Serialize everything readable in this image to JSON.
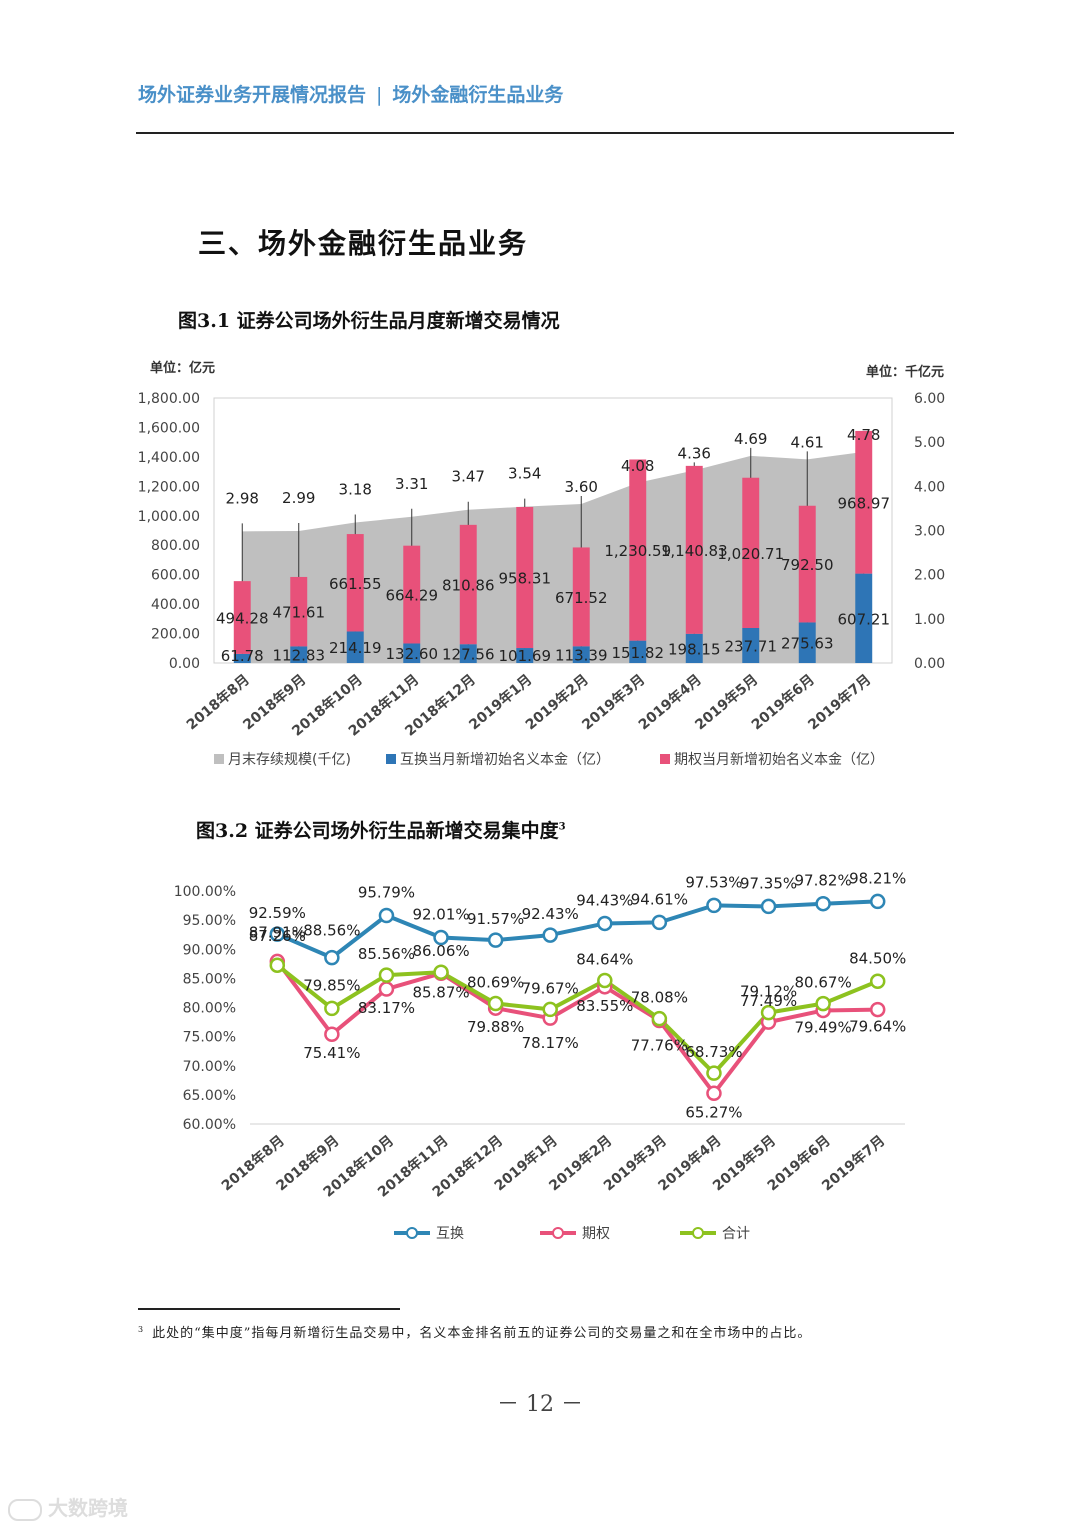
{
  "header": {
    "report_title": "场外证券业务开展情况报告",
    "separator": "|",
    "section_name": "场外金融衍生品业务"
  },
  "section_title": "三、场外金融衍生品业务",
  "figure1": {
    "label": "图3.1 证券公司场外衍生品月度新增交易情况"
  },
  "figure2": {
    "label": "图3.2 证券公司场外衍生品新增交易集中度",
    "footnote_mark": "3"
  },
  "footnote": {
    "mark": "3",
    "text": "此处的“集中度”指每月新增衍生品交易中，名义本金排名前五的证券公司的交易量之和在全市场中的占比。"
  },
  "page_number": "－ 12 －",
  "watermark": "大数跨境",
  "colors": {
    "accent": "#4a90c8",
    "gray": "#bfbfbf",
    "blue": "#2e75b6",
    "pink": "#e8517a",
    "green": "#8dc21f",
    "line_blue": "#2e86b5",
    "line_pink": "#e8517a"
  },
  "chart_data": [
    {
      "type": "bar",
      "title": "图3.1 证券公司场外衍生品月度新增交易情况",
      "left_unit": "单位：亿元",
      "right_unit": "单位：千亿元",
      "categories": [
        "2018年8月",
        "2018年9月",
        "2018年10月",
        "2018年11月",
        "2018年12月",
        "2019年1月",
        "2019年2月",
        "2019年3月",
        "2019年4月",
        "2019年5月",
        "2019年6月",
        "2019年7月"
      ],
      "ylim_left": [
        0,
        1800
      ],
      "yticks_left": [
        "0.00",
        "200.00",
        "400.00",
        "600.00",
        "800.00",
        "1,000.00",
        "1,200.00",
        "1,400.00",
        "1,600.00",
        "1,800.00"
      ],
      "ylim_right": [
        0,
        6
      ],
      "yticks_right": [
        "0.00",
        "1.00",
        "2.00",
        "3.00",
        "4.00",
        "5.00",
        "6.00"
      ],
      "series": [
        {
          "name": "月末存续规模(千亿)",
          "axis": "right",
          "kind": "area",
          "values": [
            2.98,
            2.99,
            3.18,
            3.31,
            3.47,
            3.54,
            3.6,
            4.08,
            4.36,
            4.69,
            4.61,
            4.78
          ],
          "labels": [
            "2.98",
            "2.99",
            "3.18",
            "3.31",
            "3.47",
            "3.54",
            "3.60",
            "4.08",
            "4.36",
            "4.69",
            "4.61",
            "4.78"
          ]
        },
        {
          "name": "互换当月新增初始名义本金（亿）",
          "axis": "left",
          "kind": "stack",
          "values": [
            61.78,
            112.83,
            214.19,
            132.6,
            127.56,
            101.69,
            113.39,
            151.82,
            198.15,
            237.71,
            275.63,
            607.21
          ],
          "labels": [
            "61.78",
            "112.83",
            "214.19",
            "132.60",
            "127.56",
            "101.69",
            "113.39",
            "151.82",
            "198.15",
            "237.71",
            "275.63",
            "607.21"
          ]
        },
        {
          "name": "期权当月新增初始名义本金（亿）",
          "axis": "left",
          "kind": "stack",
          "values": [
            494.28,
            471.61,
            661.55,
            664.29,
            810.86,
            958.31,
            671.52,
            1230.59,
            1140.83,
            1020.71,
            792.5,
            968.97
          ],
          "labels": [
            "494.28",
            "471.61",
            "661.55",
            "664.29",
            "810.86",
            "958.31",
            "671.52",
            "1,230.59",
            "1,140.83",
            "1,020.71",
            "792.50",
            "968.97"
          ]
        }
      ]
    },
    {
      "type": "line",
      "title": "图3.2 证券公司场外衍生品新增交易集中度",
      "categories": [
        "2018年8月",
        "2018年9月",
        "2018年10月",
        "2018年11月",
        "2018年12月",
        "2019年1月",
        "2019年2月",
        "2019年3月",
        "2019年4月",
        "2019年5月",
        "2019年6月",
        "2019年7月"
      ],
      "ylim": [
        60,
        100
      ],
      "yticks": [
        "60.00%",
        "65.00%",
        "70.00%",
        "75.00%",
        "80.00%",
        "85.00%",
        "90.00%",
        "95.00%",
        "100.00%"
      ],
      "series": [
        {
          "name": "互换",
          "values": [
            92.59,
            88.56,
            95.79,
            92.01,
            91.57,
            92.43,
            94.43,
            94.61,
            97.53,
            97.35,
            97.82,
            98.21
          ],
          "labels": [
            "92.59%",
            "88.56%",
            "95.79%",
            "92.01%",
            "91.57%",
            "92.43%",
            "94.43%",
            "94.61%",
            "97.53%",
            "97.35%",
            "97.82%",
            "98.21%"
          ]
        },
        {
          "name": "期权",
          "values": [
            87.91,
            75.41,
            83.17,
            85.87,
            79.88,
            78.17,
            83.55,
            77.76,
            65.27,
            77.49,
            79.49,
            79.64
          ],
          "labels": [
            "87.91%",
            "75.41%",
            "83.17%",
            "85.87%",
            "79.88%",
            "78.17%",
            "83.55%",
            "77.76%",
            "65.27%",
            "77.49%",
            "79.49%",
            "79.64%"
          ]
        },
        {
          "name": "合计",
          "values": [
            87.26,
            79.85,
            85.56,
            86.06,
            80.69,
            79.67,
            84.64,
            78.08,
            68.73,
            79.12,
            80.67,
            84.5
          ],
          "labels": [
            "87.26%",
            "79.85%",
            "85.56%",
            "86.06%",
            "80.69%",
            "79.67%",
            "84.64%",
            "78.08%",
            "68.73%",
            "79.12%",
            "80.67%",
            "84.50%"
          ]
        }
      ]
    }
  ]
}
